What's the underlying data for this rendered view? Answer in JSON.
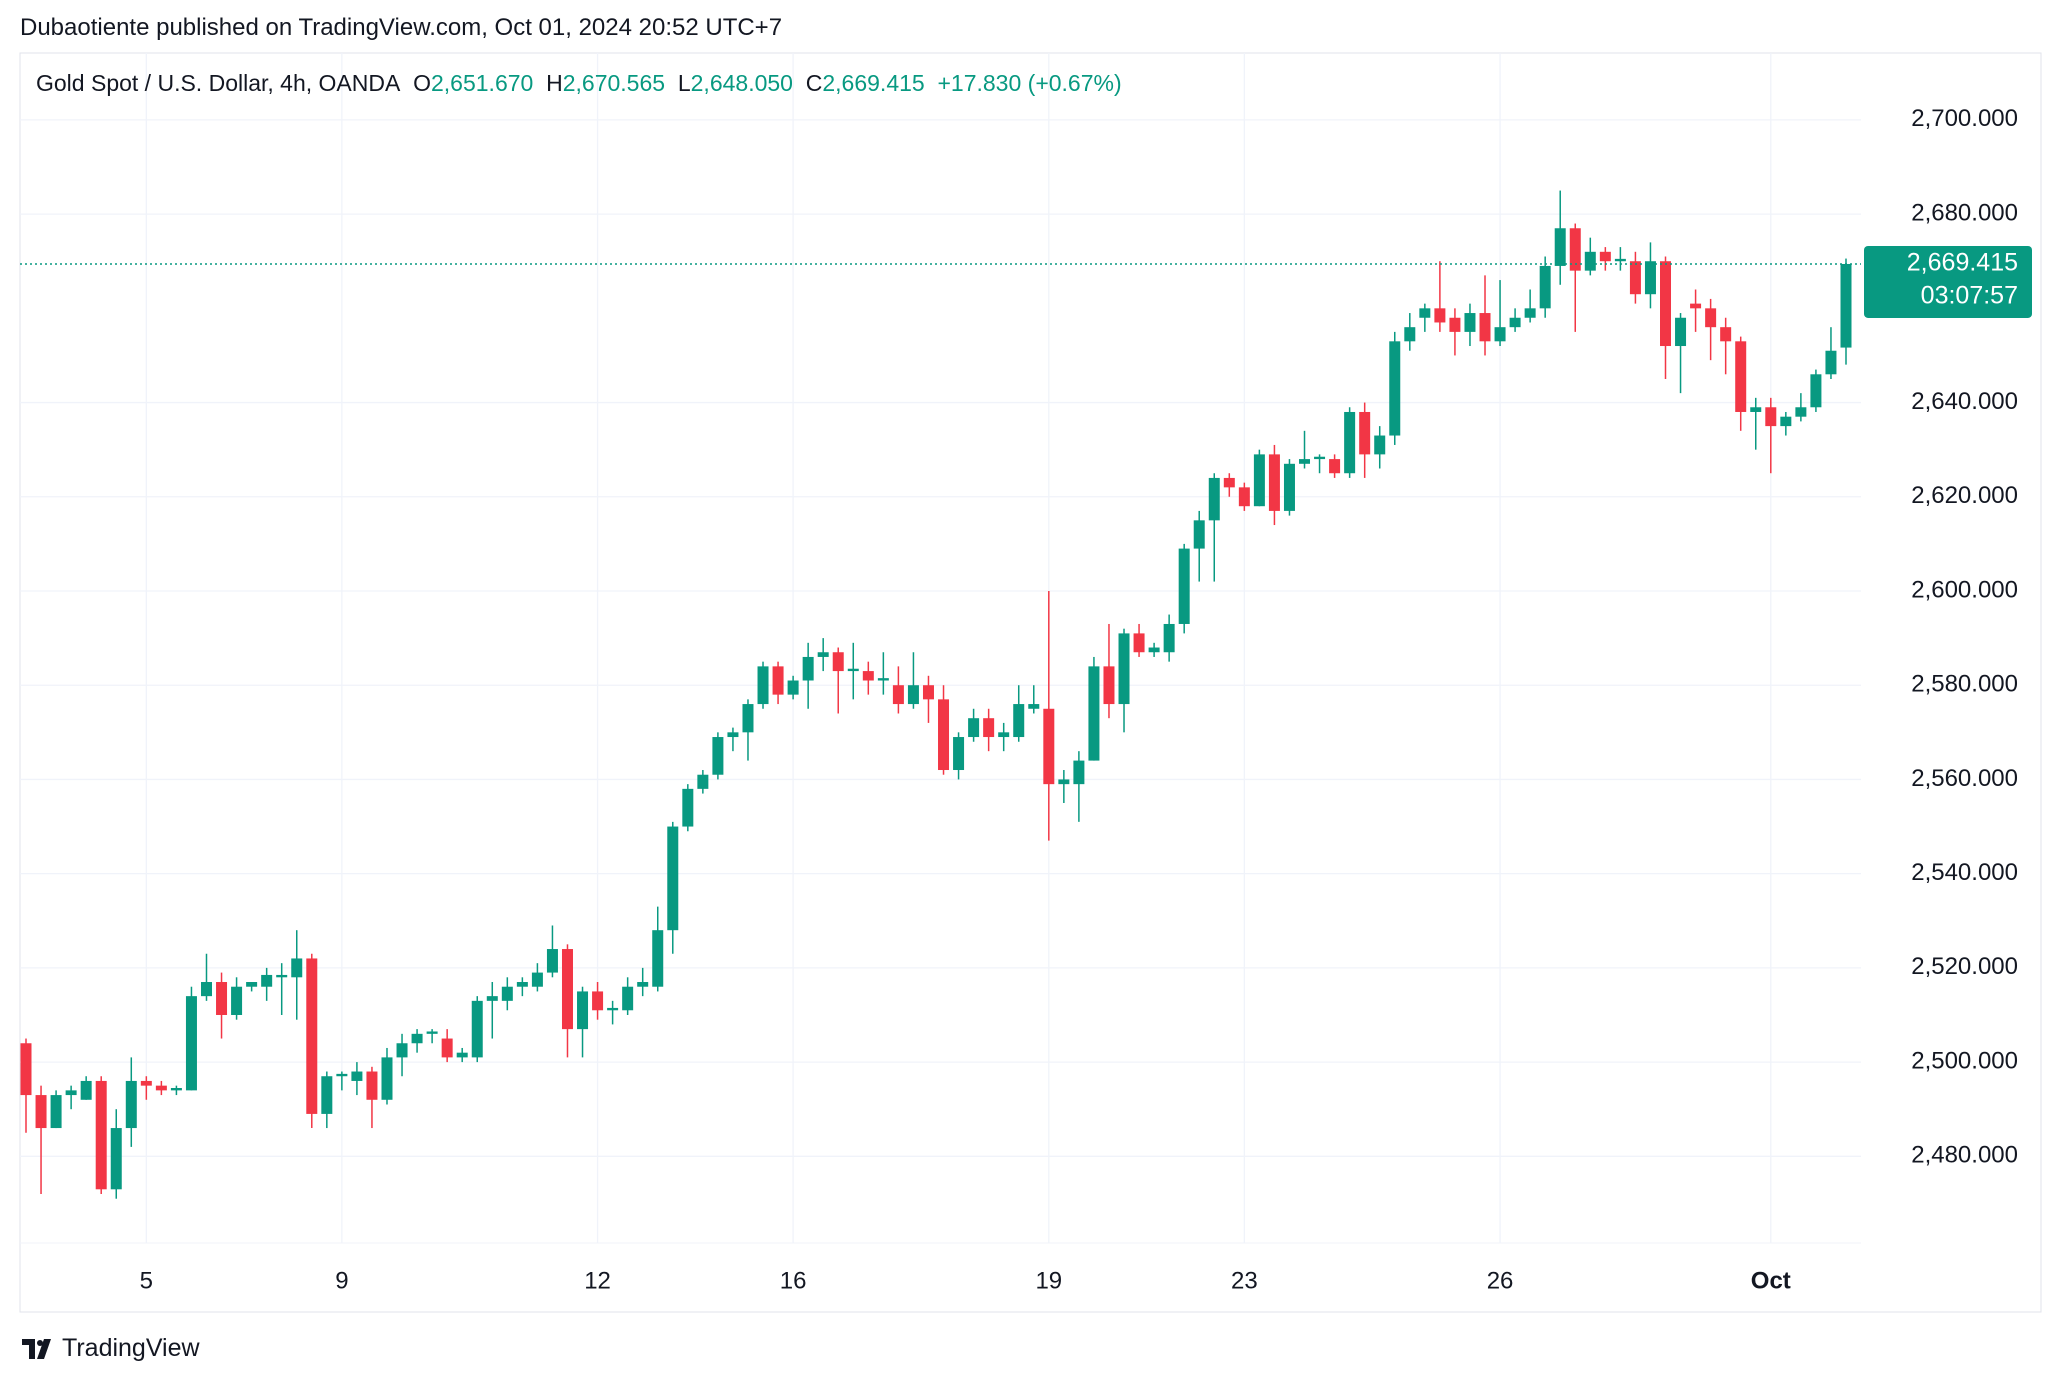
{
  "header": {
    "published": "Dubaotiente published on TradingView.com, Oct 01, 2024 20:52 UTC+7",
    "brand": "TradingView"
  },
  "legend": {
    "symbol": "Gold Spot / U.S. Dollar, 4h, OANDA",
    "o_label": "O",
    "o": "2,651.670",
    "h_label": "H",
    "h": "2,670.565",
    "l_label": "L",
    "l": "2,648.050",
    "c_label": "C",
    "c": "2,669.415",
    "change": "+17.830 (+0.67%)"
  },
  "chart_data": {
    "type": "candlestick",
    "up_color": "#089981",
    "down_color": "#f23645",
    "grid": true,
    "ylim": [
      2461.6,
      2714.2
    ],
    "yticks": [
      {
        "value": 2480,
        "label": "2,480.000"
      },
      {
        "value": 2500,
        "label": "2,500.000"
      },
      {
        "value": 2520,
        "label": "2,520.000"
      },
      {
        "value": 2540,
        "label": "2,540.000"
      },
      {
        "value": 2560,
        "label": "2,560.000"
      },
      {
        "value": 2580,
        "label": "2,580.000"
      },
      {
        "value": 2600,
        "label": "2,600.000"
      },
      {
        "value": 2620,
        "label": "2,620.000"
      },
      {
        "value": 2640,
        "label": "2,640.000"
      },
      {
        "value": 2680,
        "label": "2,680.000"
      },
      {
        "value": 2700,
        "label": "2,700.000"
      }
    ],
    "price_line": {
      "value": 2669.415,
      "label": "2,669.415",
      "countdown": "03:07:57"
    },
    "categories": [
      null,
      null,
      null,
      null,
      null,
      null,
      null,
      null,
      "5",
      null,
      null,
      null,
      null,
      null,
      null,
      null,
      null,
      null,
      null,
      null,
      null,
      "9",
      null,
      null,
      null,
      null,
      null,
      null,
      null,
      null,
      null,
      null,
      null,
      null,
      null,
      null,
      null,
      null,
      "12",
      null,
      null,
      null,
      null,
      null,
      null,
      null,
      null,
      null,
      null,
      null,
      null,
      "16",
      null,
      null,
      null,
      null,
      null,
      null,
      null,
      null,
      null,
      null,
      null,
      null,
      null,
      null,
      null,
      null,
      "19",
      null,
      null,
      null,
      null,
      null,
      null,
      null,
      null,
      null,
      null,
      null,
      null,
      "23",
      null,
      null,
      null,
      null,
      null,
      null,
      null,
      null,
      null,
      null,
      null,
      null,
      null,
      null,
      null,
      null,
      "26",
      null,
      null,
      null,
      null,
      null,
      null,
      null,
      null,
      null,
      null,
      null,
      null,
      null,
      null,
      null,
      null,
      null,
      "Oct",
      null,
      null,
      null,
      null,
      null
    ],
    "ohlc": [
      [
        2504,
        2505,
        2485,
        2493
      ],
      [
        2493,
        2495,
        2472,
        2486
      ],
      [
        2486,
        2494,
        2486,
        2493
      ],
      [
        2493,
        2495,
        2490,
        2494
      ],
      [
        2492,
        2497,
        2492,
        2496
      ],
      [
        2496,
        2497,
        2472,
        2473
      ],
      [
        2473,
        2490,
        2471,
        2486
      ],
      [
        2486,
        2501,
        2482,
        2496
      ],
      [
        2496,
        2497,
        2492,
        2495
      ],
      [
        2495,
        2496,
        2493,
        2494
      ],
      [
        2494,
        2495,
        2493,
        2494.5
      ],
      [
        2494,
        2516,
        2494,
        2514
      ],
      [
        2514,
        2523,
        2513,
        2517
      ],
      [
        2517,
        2519,
        2505,
        2510
      ],
      [
        2510,
        2518,
        2509,
        2516
      ],
      [
        2516,
        2517,
        2515,
        2517
      ],
      [
        2516,
        2520,
        2513,
        2518.5
      ],
      [
        2518,
        2521,
        2510,
        2518.5
      ],
      [
        2518,
        2528,
        2509,
        2522
      ],
      [
        2522,
        2523,
        2486,
        2489
      ],
      [
        2489,
        2498,
        2486,
        2497
      ],
      [
        2497,
        2498,
        2494,
        2497.5
      ],
      [
        2496,
        2500,
        2493,
        2498
      ],
      [
        2498,
        2499,
        2486,
        2492
      ],
      [
        2492,
        2503,
        2491,
        2501
      ],
      [
        2501,
        2506,
        2497,
        2504
      ],
      [
        2504,
        2507,
        2502,
        2506
      ],
      [
        2506,
        2507,
        2504,
        2506.5
      ],
      [
        2505,
        2507,
        2500,
        2501
      ],
      [
        2501,
        2503,
        2500,
        2502
      ],
      [
        2501,
        2514,
        2500,
        2513
      ],
      [
        2513,
        2517,
        2505,
        2514
      ],
      [
        2513,
        2518,
        2511,
        2516
      ],
      [
        2516,
        2518,
        2514,
        2517
      ],
      [
        2516,
        2521,
        2515,
        2519
      ],
      [
        2519,
        2529,
        2518,
        2524
      ],
      [
        2524,
        2525,
        2501,
        2507
      ],
      [
        2507,
        2516,
        2501,
        2515
      ],
      [
        2515,
        2517,
        2509,
        2511
      ],
      [
        2511,
        2513,
        2508,
        2511.5
      ],
      [
        2511,
        2518,
        2510,
        2516
      ],
      [
        2516,
        2520,
        2514,
        2517
      ],
      [
        2516,
        2533,
        2515,
        2528
      ],
      [
        2528,
        2551,
        2523,
        2550
      ],
      [
        2550,
        2559,
        2549,
        2558
      ],
      [
        2558,
        2562,
        2557,
        2561
      ],
      [
        2561,
        2570,
        2560,
        2569
      ],
      [
        2569,
        2571,
        2566,
        2570
      ],
      [
        2570,
        2577,
        2564,
        2576
      ],
      [
        2576,
        2585,
        2575,
        2584
      ],
      [
        2584,
        2585,
        2576,
        2578
      ],
      [
        2578,
        2582,
        2577,
        2581
      ],
      [
        2581,
        2589,
        2575,
        2586
      ],
      [
        2586,
        2590,
        2583,
        2587
      ],
      [
        2587,
        2588,
        2574,
        2583
      ],
      [
        2583,
        2589,
        2577,
        2583.5
      ],
      [
        2583,
        2585,
        2578,
        2581
      ],
      [
        2581,
        2587,
        2578,
        2581.5
      ],
      [
        2580,
        2584,
        2574,
        2576
      ],
      [
        2576,
        2587,
        2575,
        2580
      ],
      [
        2580,
        2582,
        2572,
        2577
      ],
      [
        2577,
        2580,
        2561,
        2562
      ],
      [
        2562,
        2570,
        2560,
        2569
      ],
      [
        2569,
        2575,
        2568,
        2573
      ],
      [
        2573,
        2575,
        2566,
        2569
      ],
      [
        2569,
        2572,
        2566,
        2570
      ],
      [
        2569,
        2580,
        2568,
        2576
      ],
      [
        2575,
        2580,
        2574,
        2576
      ],
      [
        2575,
        2600,
        2547,
        2559
      ],
      [
        2559,
        2562,
        2555,
        2560
      ],
      [
        2559,
        2566,
        2551,
        2564
      ],
      [
        2564,
        2586,
        2564,
        2584
      ],
      [
        2584,
        2593,
        2573,
        2576
      ],
      [
        2576,
        2592,
        2570,
        2591
      ],
      [
        2591,
        2593,
        2586,
        2587
      ],
      [
        2587,
        2589,
        2586,
        2588
      ],
      [
        2587,
        2595,
        2585,
        2593
      ],
      [
        2593,
        2610,
        2591,
        2609
      ],
      [
        2609,
        2617,
        2602,
        2615
      ],
      [
        2615,
        2625,
        2602,
        2624
      ],
      [
        2624,
        2625,
        2620,
        2622
      ],
      [
        2622,
        2623,
        2617,
        2618
      ],
      [
        2618,
        2630,
        2618,
        2629
      ],
      [
        2629,
        2631,
        2614,
        2617
      ],
      [
        2617,
        2628,
        2616,
        2627
      ],
      [
        2627,
        2634,
        2626,
        2628
      ],
      [
        2628,
        2629,
        2625,
        2628.5
      ],
      [
        2628,
        2629,
        2624,
        2625
      ],
      [
        2625,
        2639,
        2624,
        2638
      ],
      [
        2638,
        2640,
        2624,
        2629
      ],
      [
        2629,
        2635,
        2626,
        2633
      ],
      [
        2633,
        2655,
        2631,
        2653
      ],
      [
        2653,
        2659,
        2651,
        2656
      ],
      [
        2658,
        2661,
        2655,
        2660
      ],
      [
        2660,
        2670,
        2655,
        2657
      ],
      [
        2658,
        2660,
        2650,
        2655
      ],
      [
        2655,
        2661,
        2652,
        2659
      ],
      [
        2659,
        2667,
        2650,
        2653
      ],
      [
        2653,
        2666,
        2652,
        2656
      ],
      [
        2656,
        2660,
        2655,
        2658
      ],
      [
        2658,
        2664,
        2657,
        2660
      ],
      [
        2660,
        2671,
        2658,
        2669
      ],
      [
        2669,
        2685,
        2665,
        2677
      ],
      [
        2677,
        2678,
        2655,
        2668
      ],
      [
        2668,
        2675,
        2667,
        2672
      ],
      [
        2672,
        2673,
        2668,
        2670
      ],
      [
        2670,
        2673,
        2668,
        2670.5
      ],
      [
        2670,
        2672,
        2661,
        2663
      ],
      [
        2663,
        2674,
        2660,
        2670
      ],
      [
        2670,
        2671,
        2645,
        2652
      ],
      [
        2652,
        2659,
        2642,
        2658
      ],
      [
        2661,
        2664,
        2655,
        2660
      ],
      [
        2660,
        2662,
        2649,
        2656
      ],
      [
        2656,
        2658,
        2646,
        2653
      ],
      [
        2653,
        2654,
        2634,
        2638
      ],
      [
        2638,
        2641,
        2630,
        2639
      ],
      [
        2639,
        2641,
        2625,
        2635
      ],
      [
        2635,
        2638,
        2633,
        2637
      ],
      [
        2637,
        2642,
        2636,
        2639
      ],
      [
        2639,
        2647,
        2638,
        2646
      ],
      [
        2646,
        2656,
        2645,
        2651
      ],
      [
        2651.67,
        2670.565,
        2648.05,
        2669.415
      ]
    ]
  }
}
